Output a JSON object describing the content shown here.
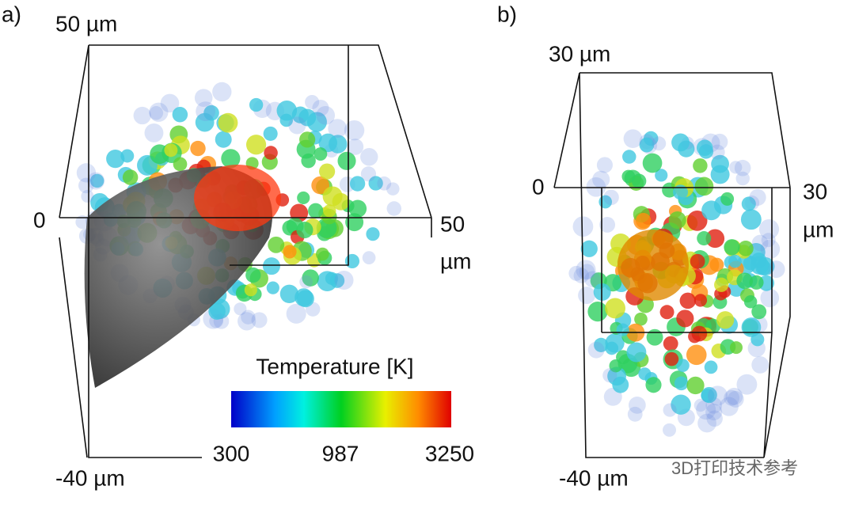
{
  "panels": [
    {
      "label": "a)",
      "top_label": "50 µm",
      "zero_label": "0",
      "right_label": "50",
      "right_unit": "µm",
      "bottom_label": "-40 µm"
    },
    {
      "label": "b)",
      "top_label": "30 µm",
      "zero_label": "0",
      "right_label": "30",
      "right_unit": "µm",
      "bottom_label": "-40 µm"
    }
  ],
  "colorbar": {
    "title": "Temperature [K]",
    "labels": [
      "300",
      "987",
      "3250"
    ]
  },
  "watermark": "3D打印技术参考"
}
